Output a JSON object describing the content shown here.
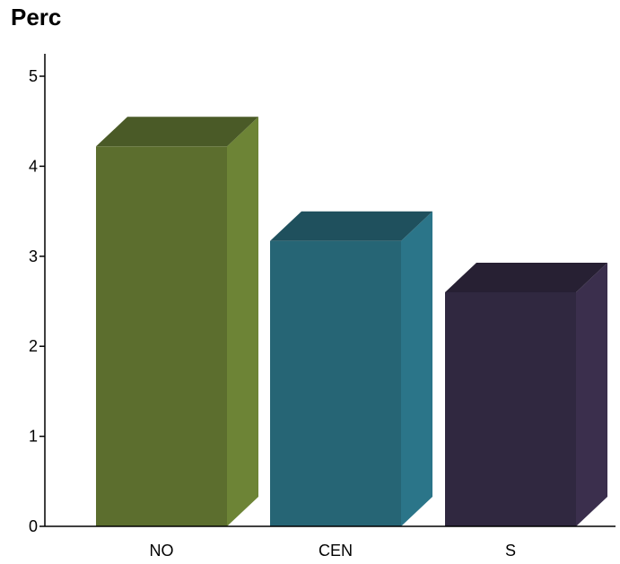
{
  "chart_data": {
    "type": "bar",
    "title": "Perc",
    "xlabel": "",
    "ylabel": "",
    "categories": [
      "NO",
      "CEN",
      "S"
    ],
    "values": [
      4.22,
      3.17,
      2.6
    ],
    "ylim": [
      0,
      5.25
    ],
    "yticks": [
      "0",
      "1",
      "2",
      "3",
      "4",
      "5"
    ],
    "grid": false,
    "legend": "none",
    "bar_style": "3d",
    "colors": [
      {
        "front": "#5c6e2e",
        "side": "#6d8436",
        "top": "#4a5a27"
      },
      {
        "front": "#266575",
        "side": "#2b7589",
        "top": "#1f505d"
      },
      {
        "front": "#302840",
        "side": "#3b2f4d",
        "top": "#272033"
      }
    ]
  }
}
